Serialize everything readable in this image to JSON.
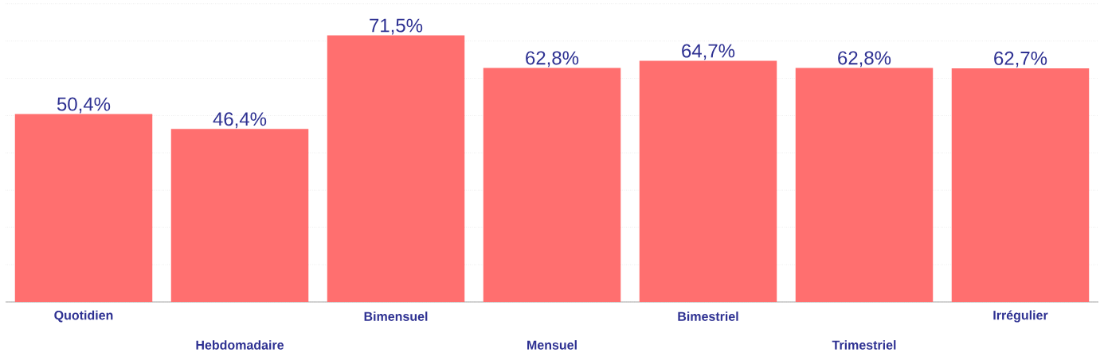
{
  "chart_data": {
    "type": "bar",
    "categories": [
      "Quotidien",
      "Hebdomadaire",
      "Bimensuel",
      "Mensuel",
      "Bimestriel",
      "Trimestriel",
      "Irrégulier"
    ],
    "values": [
      50.4,
      46.4,
      71.5,
      62.8,
      64.7,
      62.8,
      62.7
    ],
    "value_labels": [
      "50,4%",
      "46,4%",
      "71,5%",
      "62,8%",
      "64,7%",
      "62,8%",
      "62,7%"
    ],
    "color": "#ff6f6f",
    "grid": "y",
    "tick_labels": "x"
  }
}
